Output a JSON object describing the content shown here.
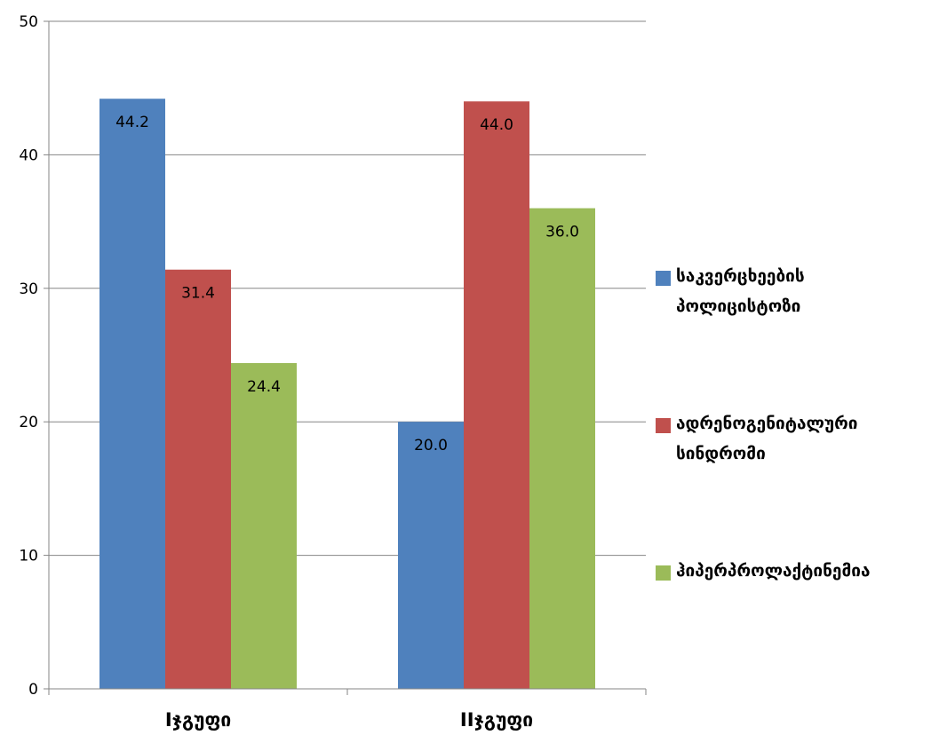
{
  "chart_data": {
    "type": "bar",
    "categories": [
      "Iჯგუფი",
      "IIჯგუფი"
    ],
    "series": [
      {
        "name": "საკვერცხეების პოლიცისტოზი",
        "values": [
          44.2,
          20.0
        ],
        "labels": [
          "44.2",
          "20.0"
        ],
        "color": "#4F81BD"
      },
      {
        "name": "ადრენოგენიტალური სინდრომი",
        "values": [
          31.4,
          44.0
        ],
        "labels": [
          "31.4",
          "44.0"
        ],
        "color": "#C0504D"
      },
      {
        "name": "ჰიპერპროლაქტინემია",
        "values": [
          24.4,
          36.0
        ],
        "labels": [
          "24.4",
          "36.0"
        ],
        "color": "#9BBB59"
      }
    ],
    "ylim": [
      0,
      50
    ],
    "yticks": [
      "0",
      "10",
      "20",
      "30",
      "40",
      "50"
    ],
    "grid": true,
    "legend_position": "right"
  }
}
